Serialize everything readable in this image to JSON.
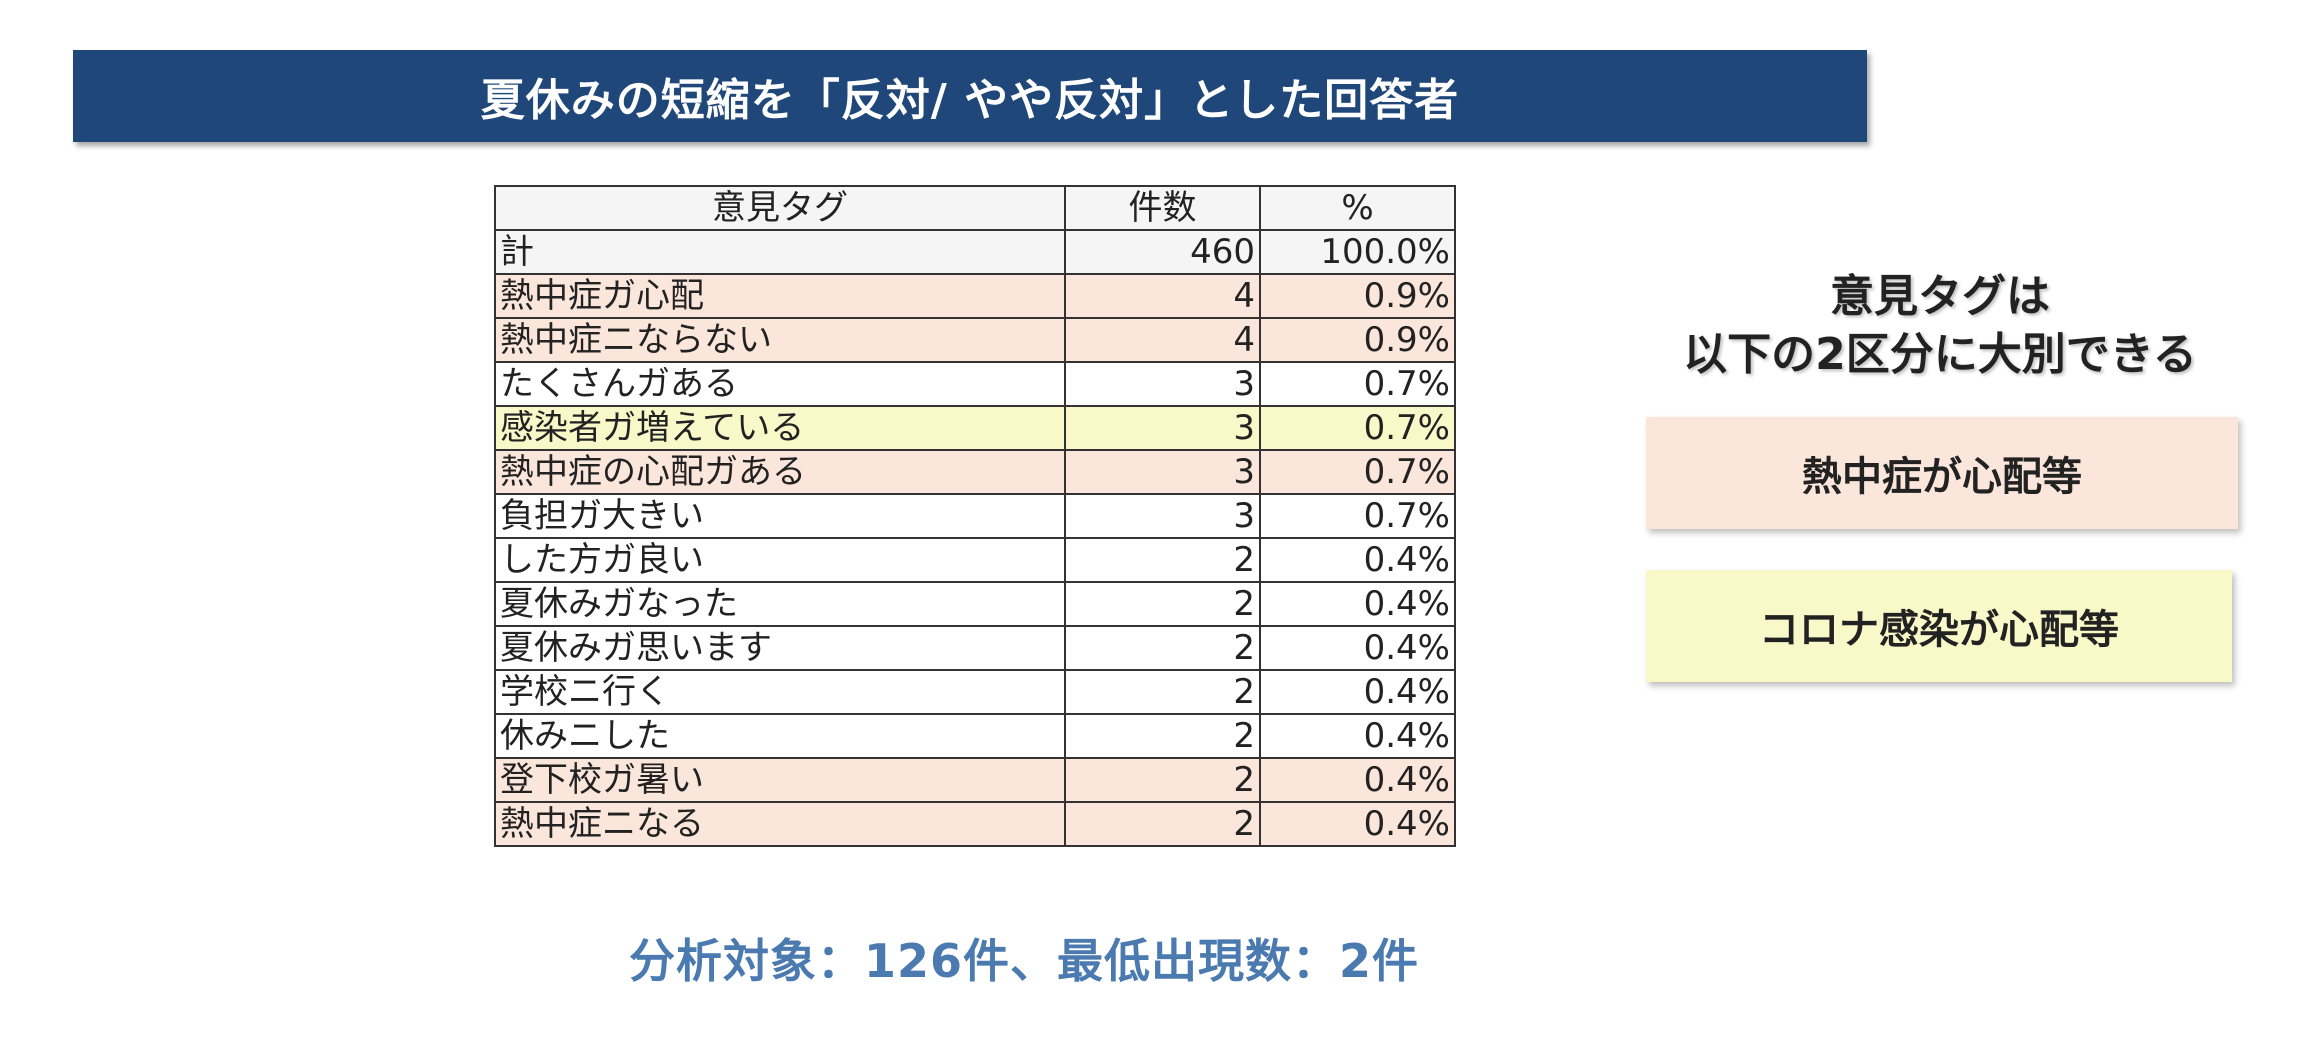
{
  "title": "夏休みの短縮を「反対/ やや反対」とした回答者",
  "table": {
    "headers": {
      "tag": "意見タグ",
      "count": "件数",
      "percent": "%"
    },
    "total": {
      "tag": "計",
      "count": "460",
      "percent": "100.0%"
    },
    "rows": [
      {
        "tag": "熱中症ガ心配",
        "count": "4",
        "percent": "0.9%",
        "category": "heat"
      },
      {
        "tag": "熱中症ニならない",
        "count": "4",
        "percent": "0.9%",
        "category": "heat"
      },
      {
        "tag": "たくさんガある",
        "count": "3",
        "percent": "0.7%",
        "category": "plain"
      },
      {
        "tag": "感染者ガ増えている",
        "count": "3",
        "percent": "0.7%",
        "category": "corona"
      },
      {
        "tag": "熱中症の心配ガある",
        "count": "3",
        "percent": "0.7%",
        "category": "heat"
      },
      {
        "tag": "負担ガ大きい",
        "count": "3",
        "percent": "0.7%",
        "category": "plain"
      },
      {
        "tag": "した方ガ良い",
        "count": "2",
        "percent": "0.4%",
        "category": "plain"
      },
      {
        "tag": "夏休みガなった",
        "count": "2",
        "percent": "0.4%",
        "category": "plain"
      },
      {
        "tag": "夏休みガ思います",
        "count": "2",
        "percent": "0.4%",
        "category": "plain"
      },
      {
        "tag": "学校ニ行く",
        "count": "2",
        "percent": "0.4%",
        "category": "plain"
      },
      {
        "tag": "休みニした",
        "count": "2",
        "percent": "0.4%",
        "category": "plain"
      },
      {
        "tag": "登下校ガ暑い",
        "count": "2",
        "percent": "0.4%",
        "category": "heat"
      },
      {
        "tag": "熱中症ニなる",
        "count": "2",
        "percent": "0.4%",
        "category": "heat"
      }
    ]
  },
  "side": {
    "heading_line1": "意見タグは",
    "heading_line2": "以下の2区分に大別できる",
    "legend_heat": "熱中症が心配等",
    "legend_corona": "コロナ感染が心配等"
  },
  "colors": {
    "banner": "#1f477a",
    "heat": "#fbe6db",
    "corona": "#f8f8c8",
    "footer_text": "#4a7ab0"
  },
  "footer": "分析対象：126件、最低出現数：2件"
}
